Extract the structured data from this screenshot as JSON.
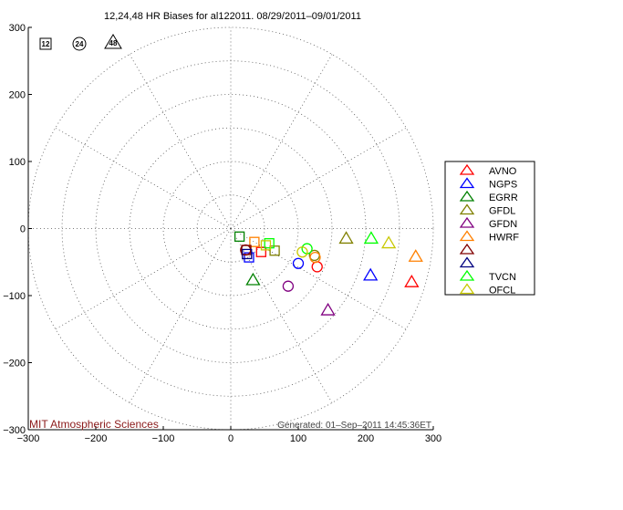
{
  "chart_data": {
    "type": "scatter",
    "title": "12,24,48 HR Biases for al122011. 08/29/2011–09/01/2011",
    "xlim": [
      -300,
      300
    ],
    "ylim": [
      -300,
      300
    ],
    "x_ticks": [
      "−300",
      "−200",
      "−100",
      "0",
      "100",
      "200",
      "300"
    ],
    "y_ticks": [
      "300",
      "200",
      "100",
      "0",
      "−100",
      "−200",
      "−300"
    ],
    "polar_grid": {
      "rings": [
        50,
        100,
        150,
        200,
        250,
        300
      ],
      "spokes_deg": [
        0,
        30,
        60,
        90,
        120,
        150,
        180,
        210,
        240,
        270,
        300,
        330
      ]
    },
    "key": [
      {
        "label": "12",
        "marker": "square"
      },
      {
        "label": "24",
        "marker": "circle"
      },
      {
        "label": "48",
        "marker": "triangle"
      }
    ],
    "legend_position": "outside-right",
    "series": [
      {
        "name": "AVNO",
        "color": "#ff0000",
        "points": {
          "12": [
            45,
            -35
          ],
          "24": [
            128,
            -57
          ],
          "48": [
            268,
            -80
          ]
        }
      },
      {
        "name": "NGPS",
        "color": "#0000ff",
        "points": {
          "12": [
            27,
            -43
          ],
          "24": [
            100,
            -52
          ],
          "48": [
            207,
            -70
          ]
        }
      },
      {
        "name": "EGRR",
        "color": "#008000",
        "points": {
          "12": [
            13,
            -12
          ],
          "48": [
            33,
            -77
          ]
        }
      },
      {
        "name": "GFDL",
        "color": "#808000",
        "points": {
          "12": [
            65,
            -33
          ],
          "24": [
            124,
            -40
          ],
          "48": [
            171,
            -15
          ]
        }
      },
      {
        "name": "GFDN",
        "color": "#800080",
        "points": {
          "24": [
            85,
            -86
          ],
          "48": [
            144,
            -122
          ]
        }
      },
      {
        "name": "HWRF",
        "color": "#ff8000",
        "points": {
          "12": [
            35,
            -20
          ],
          "24": [
            125,
            -43
          ],
          "48": [
            274,
            -42
          ]
        }
      },
      {
        "name": "",
        "color": "#800000",
        "points": {
          "12": [
            23,
            -32
          ],
          "24": [
            22,
            -32
          ]
        }
      },
      {
        "name": "",
        "color": "#000080",
        "points": {
          "12": [
            24,
            -38
          ]
        }
      },
      {
        "name": "TVCN",
        "color": "#00ff00",
        "points": {
          "12": [
            57,
            -22
          ],
          "24": [
            113,
            -30
          ],
          "48": [
            208,
            -15
          ]
        }
      },
      {
        "name": "OFCL",
        "color": "#c8c800",
        "points": {
          "12": [
            52,
            -25
          ],
          "24": [
            106,
            -35
          ],
          "48": [
            234,
            -22
          ]
        }
      }
    ]
  },
  "credit": "MIT Atmospheric Sciences",
  "generated": "Generated: 01–Sep–2011 14:45:36ET"
}
